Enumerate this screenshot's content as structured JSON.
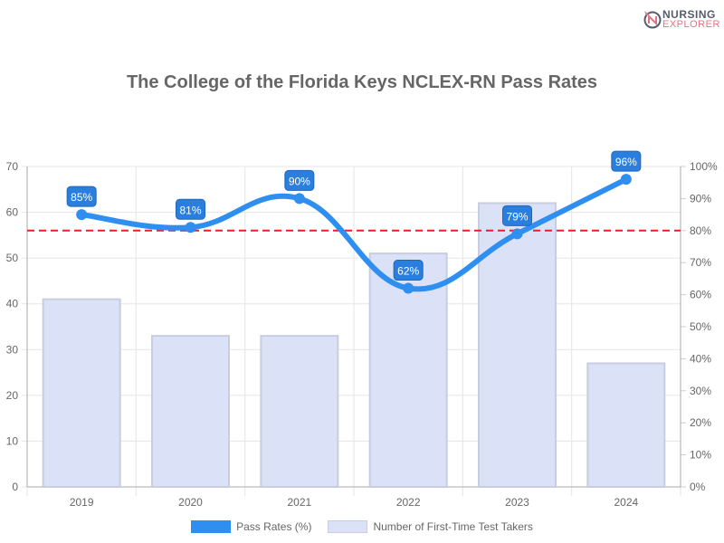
{
  "logo": {
    "line1": "NURSING",
    "line2": "EXPLORER"
  },
  "chart_data": {
    "type": "bar+line",
    "title": "The College of the Florida Keys NCLEX-RN Pass Rates",
    "categories": [
      "2019",
      "2020",
      "2021",
      "2022",
      "2023",
      "2024"
    ],
    "series": [
      {
        "name": "Pass Rates (%)",
        "type": "line",
        "axis": "right",
        "values": [
          85,
          81,
          90,
          62,
          79,
          96
        ],
        "color": "#2f8ff0"
      },
      {
        "name": "Number of First-Time Test Takers",
        "type": "bar",
        "axis": "left",
        "values": [
          41,
          33,
          33,
          51,
          62,
          27
        ],
        "color": "#dbe1f6",
        "border": "#c8cde0"
      }
    ],
    "reference_line": {
      "value": 80,
      "axis": "right",
      "color": "#ee1c25",
      "style": "dashed"
    },
    "y_left": {
      "ylim": [
        0,
        70
      ],
      "ticks": [
        "0",
        "10",
        "20",
        "30",
        "40",
        "50",
        "60",
        "70"
      ]
    },
    "y_right": {
      "ylim": [
        0,
        100
      ],
      "ticks": [
        "0%",
        "10%",
        "20%",
        "30%",
        "40%",
        "50%",
        "60%",
        "70%",
        "80%",
        "90%",
        "100%"
      ]
    },
    "data_labels": [
      "85%",
      "81%",
      "90%",
      "62%",
      "79%",
      "96%"
    ],
    "grid": true,
    "legend": "bottom"
  }
}
